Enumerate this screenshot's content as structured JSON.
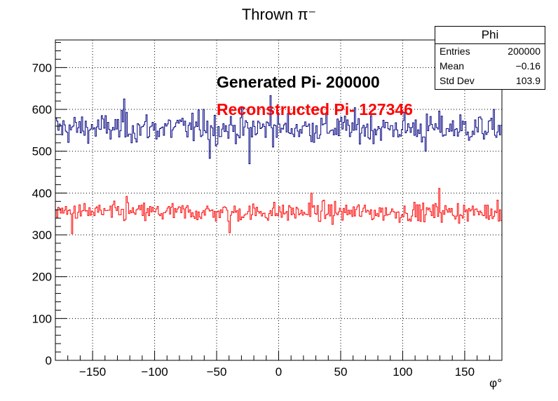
{
  "chart_data": {
    "type": "histogram",
    "title": "Thrown π⁻",
    "xlabel": "φ°",
    "ylabel": "",
    "xlim": [
      -180,
      180
    ],
    "ylim": [
      0,
      766
    ],
    "grid": true,
    "xticks": [
      -150,
      -100,
      -50,
      0,
      50,
      100,
      150
    ],
    "xtick_labels": [
      "−150",
      "−100",
      "−50",
      "0",
      "50",
      "100",
      "150"
    ],
    "yticks": [
      0,
      100,
      200,
      300,
      400,
      500,
      600,
      700
    ],
    "nbins": 360,
    "series": [
      {
        "name": "Generated Pi- 200000",
        "color": "#000080",
        "mean_count": 555,
        "spread": 25,
        "features": [
          {
            "x": -124.5,
            "y": 625
          },
          {
            "x": -55.5,
            "y": 483
          },
          {
            "x": -23.5,
            "y": 470
          },
          {
            "x": -6.5,
            "y": 633
          },
          {
            "x": -60.5,
            "y": 600
          },
          {
            "x": 118.5,
            "y": 500
          }
        ]
      },
      {
        "name": "Reconstructed Pi- 127346",
        "color": "#ff0000",
        "mean_count": 354,
        "spread": 16,
        "features": [
          {
            "x": -166.5,
            "y": 303
          },
          {
            "x": -122.5,
            "y": 392
          },
          {
            "x": -39.5,
            "y": 305
          },
          {
            "x": 26.5,
            "y": 400
          },
          {
            "x": 129.5,
            "y": 411
          },
          {
            "x": 176.5,
            "y": 383
          }
        ]
      }
    ],
    "annotations": [
      {
        "text": "Generated Pi- 200000",
        "color": "#000000"
      },
      {
        "text": "Reconstructed Pi- 127346",
        "color": "#ff0000"
      }
    ]
  },
  "stats": {
    "title": "Phi",
    "rows": [
      {
        "label": "Entries",
        "value": "200000"
      },
      {
        "label": "Mean",
        "value": "−0.16"
      },
      {
        "label": "Std Dev",
        "value": "103.9"
      }
    ]
  }
}
